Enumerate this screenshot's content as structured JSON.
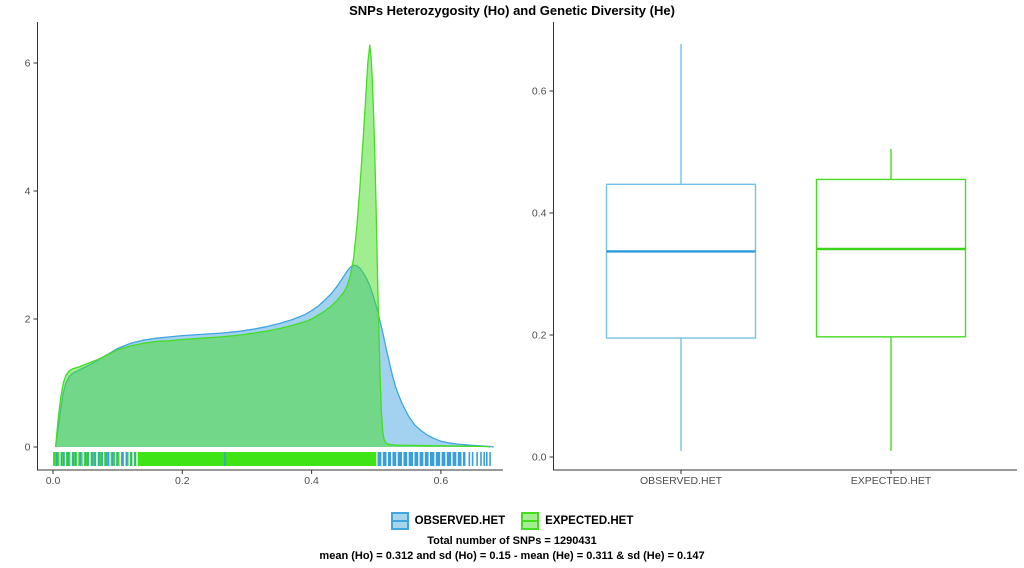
{
  "title": "SNPs Heterozygosity (Ho) and Genetic Diversity (He)",
  "legend": {
    "items": [
      {
        "label": "OBSERVED.HET",
        "stroke": "#3FA6DE",
        "fill": "#A8D5EE"
      },
      {
        "label": "EXPECTED.HET",
        "stroke": "#44DD22",
        "fill": "#A5EE92"
      }
    ]
  },
  "caption": {
    "line1": "Total number of SNPs = 1290431",
    "line2": "mean (Ho) = 0.312 and sd (Ho) = 0.15 - mean (He) = 0.311 & sd (He) = 0.147"
  },
  "chart_data": [
    {
      "type": "area",
      "title": "",
      "xlabel": "",
      "ylabel": "",
      "grid": false,
      "xlim": [
        0,
        0.7
      ],
      "ylim": [
        0,
        6.6
      ],
      "x_tick_values": [
        0,
        0.2,
        0.4,
        0.6
      ],
      "x_tick_labels": [
        "0.0",
        "0.2",
        "0.4",
        "0.6"
      ],
      "y_tick_values": [
        0,
        2,
        4,
        6
      ],
      "y_tick_labels": [
        "0",
        "2",
        "4",
        "6"
      ],
      "series": [
        {
          "name": "OBSERVED.HET",
          "stroke": "#3FA6DE",
          "fill_rgba": "rgba(51,153,221,0.45)",
          "points": [
            [
              0.004,
              0
            ],
            [
              0.008,
              0.3
            ],
            [
              0.012,
              0.6
            ],
            [
              0.016,
              0.85
            ],
            [
              0.02,
              1.0
            ],
            [
              0.025,
              1.1
            ],
            [
              0.03,
              1.15
            ],
            [
              0.04,
              1.2
            ],
            [
              0.05,
              1.25
            ],
            [
              0.06,
              1.3
            ],
            [
              0.07,
              1.36
            ],
            [
              0.08,
              1.42
            ],
            [
              0.09,
              1.48
            ],
            [
              0.1,
              1.54
            ],
            [
              0.11,
              1.58
            ],
            [
              0.12,
              1.62
            ],
            [
              0.14,
              1.67
            ],
            [
              0.16,
              1.7
            ],
            [
              0.18,
              1.72
            ],
            [
              0.2,
              1.74
            ],
            [
              0.23,
              1.76
            ],
            [
              0.26,
              1.78
            ],
            [
              0.29,
              1.81
            ],
            [
              0.31,
              1.84
            ],
            [
              0.33,
              1.88
            ],
            [
              0.35,
              1.93
            ],
            [
              0.37,
              1.99
            ],
            [
              0.39,
              2.07
            ],
            [
              0.4,
              2.13
            ],
            [
              0.41,
              2.2
            ],
            [
              0.42,
              2.29
            ],
            [
              0.43,
              2.39
            ],
            [
              0.44,
              2.52
            ],
            [
              0.45,
              2.67
            ],
            [
              0.455,
              2.75
            ],
            [
              0.46,
              2.81
            ],
            [
              0.465,
              2.84
            ],
            [
              0.47,
              2.83
            ],
            [
              0.475,
              2.79
            ],
            [
              0.48,
              2.72
            ],
            [
              0.485,
              2.63
            ],
            [
              0.49,
              2.52
            ],
            [
              0.495,
              2.37
            ],
            [
              0.5,
              2.2
            ],
            [
              0.505,
              2.0
            ],
            [
              0.51,
              1.79
            ],
            [
              0.515,
              1.56
            ],
            [
              0.52,
              1.33
            ],
            [
              0.525,
              1.12
            ],
            [
              0.53,
              0.94
            ],
            [
              0.535,
              0.8
            ],
            [
              0.54,
              0.68
            ],
            [
              0.55,
              0.48
            ],
            [
              0.56,
              0.34
            ],
            [
              0.57,
              0.25
            ],
            [
              0.58,
              0.18
            ],
            [
              0.59,
              0.13
            ],
            [
              0.6,
              0.09
            ],
            [
              0.615,
              0.06
            ],
            [
              0.63,
              0.04
            ],
            [
              0.65,
              0.025
            ],
            [
              0.665,
              0.015
            ],
            [
              0.675,
              0.008
            ],
            [
              0.682,
              0
            ]
          ]
        },
        {
          "name": "EXPECTED.HET",
          "stroke": "#44DD22",
          "fill_rgba": "rgba(68,221,34,0.5)",
          "points": [
            [
              0.004,
              0
            ],
            [
              0.008,
              0.45
            ],
            [
              0.012,
              0.78
            ],
            [
              0.016,
              1.0
            ],
            [
              0.02,
              1.12
            ],
            [
              0.025,
              1.19
            ],
            [
              0.03,
              1.22
            ],
            [
              0.04,
              1.25
            ],
            [
              0.05,
              1.29
            ],
            [
              0.06,
              1.33
            ],
            [
              0.07,
              1.37
            ],
            [
              0.08,
              1.42
            ],
            [
              0.09,
              1.47
            ],
            [
              0.1,
              1.52
            ],
            [
              0.11,
              1.55
            ],
            [
              0.12,
              1.58
            ],
            [
              0.14,
              1.62
            ],
            [
              0.16,
              1.65
            ],
            [
              0.18,
              1.66
            ],
            [
              0.2,
              1.68
            ],
            [
              0.23,
              1.7
            ],
            [
              0.26,
              1.72
            ],
            [
              0.29,
              1.75
            ],
            [
              0.31,
              1.78
            ],
            [
              0.33,
              1.81
            ],
            [
              0.35,
              1.85
            ],
            [
              0.37,
              1.9
            ],
            [
              0.39,
              1.96
            ],
            [
              0.4,
              2.0
            ],
            [
              0.41,
              2.06
            ],
            [
              0.42,
              2.12
            ],
            [
              0.43,
              2.2
            ],
            [
              0.44,
              2.3
            ],
            [
              0.45,
              2.42
            ],
            [
              0.455,
              2.52
            ],
            [
              0.46,
              2.68
            ],
            [
              0.465,
              2.95
            ],
            [
              0.47,
              3.45
            ],
            [
              0.475,
              4.1
            ],
            [
              0.48,
              4.85
            ],
            [
              0.484,
              5.5
            ],
            [
              0.487,
              6.0
            ],
            [
              0.49,
              6.28
            ],
            [
              0.492,
              6.1
            ],
            [
              0.494,
              5.7
            ],
            [
              0.496,
              5.15
            ],
            [
              0.498,
              4.45
            ],
            [
              0.5,
              3.6
            ],
            [
              0.502,
              2.7
            ],
            [
              0.504,
              1.85
            ],
            [
              0.506,
              1.1
            ],
            [
              0.508,
              0.55
            ],
            [
              0.51,
              0.25
            ],
            [
              0.512,
              0.12
            ],
            [
              0.515,
              0.06
            ],
            [
              0.52,
              0.04
            ],
            [
              0.53,
              0.03
            ],
            [
              0.55,
              0.025
            ],
            [
              0.58,
              0.02
            ],
            [
              0.61,
              0.017
            ],
            [
              0.64,
              0.013
            ],
            [
              0.66,
              0.01
            ],
            [
              0.672,
              0.006
            ],
            [
              0.676,
              0
            ]
          ]
        }
      ],
      "rug": {
        "green_color": "#3FE417",
        "blue_color": "#3A9FD9",
        "green_band": [
          0.0,
          0.5
        ],
        "white_slits_left": [
          0.011,
          0.019,
          0.028,
          0.038,
          0.047,
          0.057,
          0.068,
          0.078,
          0.088,
          0.097,
          0.104,
          0.111,
          0.118,
          0.124,
          0.13
        ],
        "blue_ticks_left": [
          0.006,
          0.013,
          0.017,
          0.023,
          0.031,
          0.035,
          0.042,
          0.05,
          0.054,
          0.06,
          0.065,
          0.071,
          0.076,
          0.082,
          0.086,
          0.092,
          0.099,
          0.107,
          0.114,
          0.121,
          0.127,
          0.266
        ],
        "blue_band": [
          0.502,
          0.638
        ],
        "white_slits_right": [
          0.509,
          0.517,
          0.524,
          0.532,
          0.541,
          0.549,
          0.558,
          0.566,
          0.574,
          0.582,
          0.591,
          0.6,
          0.608,
          0.617,
          0.625,
          0.633
        ],
        "blue_ticks_right": [
          0.644,
          0.649,
          0.656,
          0.662,
          0.667,
          0.671,
          0.676
        ]
      }
    },
    {
      "type": "boxplot",
      "categories": [
        "OBSERVED.HET",
        "EXPECTED.HET"
      ],
      "ylim": [
        0,
        0.7
      ],
      "y_tick_values": [
        0,
        0.2,
        0.4,
        0.6
      ],
      "y_tick_labels": [
        "0.0",
        "0.2",
        "0.4",
        "0.6"
      ],
      "boxes": [
        {
          "name": "OBSERVED.HET",
          "min": 0.01,
          "q1": 0.195,
          "median": 0.337,
          "q3": 0.447,
          "max": 0.677,
          "border": "#73C3E8",
          "median_color": "#2D9AD7"
        },
        {
          "name": "EXPECTED.HET",
          "min": 0.01,
          "q1": 0.197,
          "median": 0.341,
          "q3": 0.455,
          "max": 0.505,
          "border": "#44DD22",
          "median_color": "#3ED31D"
        }
      ]
    }
  ]
}
